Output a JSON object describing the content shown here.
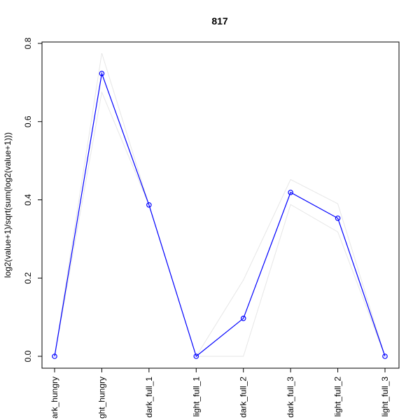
{
  "chart_data": {
    "type": "line",
    "title": "817",
    "xlabel": "",
    "ylabel": "log2(value+1)/sqrt(sum(log2(value+1)))",
    "categories": [
      "dark_hungry",
      "light_hungry",
      "dark_full_1",
      "light_full_1",
      "dark_full_2",
      "dark_full_3",
      "light_full_2",
      "light_full_3"
    ],
    "tick_labels": [
      "ark_hungry",
      "ght_hungry",
      "dark_full_1",
      "light_full_1",
      "dark_full_2",
      "dark_full_3",
      "light_full_2",
      "light_full_3"
    ],
    "series": [
      {
        "values": [
          0.0,
          0.723,
          0.387,
          0.0,
          0.097,
          0.419,
          0.353,
          0.0
        ]
      }
    ],
    "band_upper": [
      0.0,
      0.775,
      0.387,
      0.0,
      0.195,
      0.452,
      0.39,
      0.0
    ],
    "band_lower": [
      0.0,
      0.675,
      0.387,
      0.0,
      0.0,
      0.388,
      0.318,
      0.0
    ],
    "ylim": [
      0.0,
      0.8
    ],
    "yticks": [
      0.0,
      0.2,
      0.4,
      0.6,
      0.8
    ],
    "ytick_labels": [
      "0.0",
      "0.2",
      "0.4",
      "0.6",
      "0.8"
    ],
    "grid": false,
    "colors": {
      "series": "#0000ff",
      "band": "#e6e6e6"
    }
  }
}
